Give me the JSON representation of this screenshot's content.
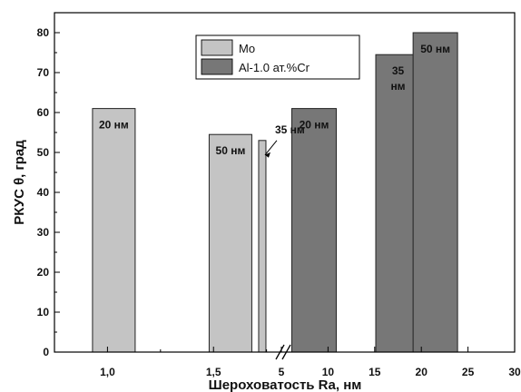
{
  "chart_data": {
    "type": "bar",
    "title": "",
    "xlabel": "Шероховатость Ra, нм",
    "ylabel": "РКУС θ, град",
    "ylim": [
      0,
      85
    ],
    "grid": false,
    "legend_position": "top-center",
    "legend": [
      {
        "name": "Mo",
        "color": "#c4c4c4"
      },
      {
        "name": "Al-1.0 ат.%Cr",
        "color": "#777777"
      }
    ],
    "x_segments": [
      {
        "ticks": [
          1.0,
          1.5
        ],
        "tick_labels": [
          "1,0",
          "1,5"
        ],
        "range": [
          0.75,
          1.82
        ]
      },
      {
        "ticks": [
          5,
          10,
          15,
          20,
          25,
          30
        ],
        "tick_labels": [
          "5",
          "10",
          "15",
          "20",
          "25",
          "30"
        ],
        "range": [
          5,
          30
        ]
      }
    ],
    "axis_break_at": 5,
    "y_ticks": [
      0,
      10,
      20,
      30,
      40,
      50,
      60,
      70,
      80
    ],
    "series": [
      {
        "name": "Mo",
        "color": "#c4c4c4",
        "bars": [
          {
            "x": 1.03,
            "value": 61,
            "label": "20 нм"
          },
          {
            "x": 1.58,
            "value": 54.5,
            "label": "50 нм"
          },
          {
            "x": 1.73,
            "value": 53,
            "label": "35 нм",
            "label_offset": "right-arrow"
          }
        ]
      },
      {
        "name": "Al-1.0 ат.%Cr",
        "color": "#777777",
        "bars": [
          {
            "x": 8.5,
            "value": 61,
            "label": "20 нм"
          },
          {
            "x": 17.5,
            "value": 74.5,
            "label": "35\nнм"
          },
          {
            "x": 21.5,
            "value": 80,
            "label": "50 нм"
          }
        ]
      }
    ]
  }
}
